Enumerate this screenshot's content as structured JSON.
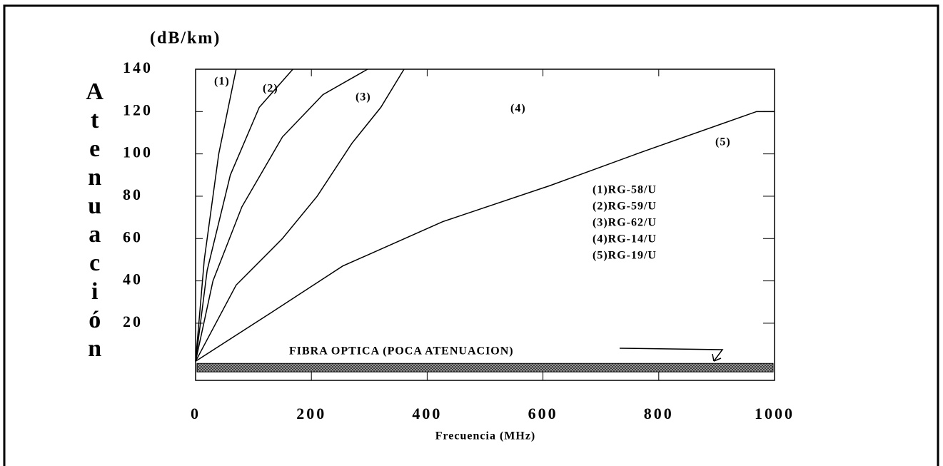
{
  "chart_data": {
    "type": "line",
    "units": "(dB/km)",
    "ylabel": "Atenuación",
    "xlabel": "Frecuencia (MHz)",
    "xlim": [
      0,
      1000
    ],
    "ylim": [
      -7,
      140
    ],
    "xticks": [
      0,
      200,
      400,
      600,
      800,
      1000
    ],
    "yticks": [
      20,
      40,
      60,
      80,
      100,
      120,
      140
    ],
    "annotation": {
      "text": "FIBRA OPTICA (POCA ATENUACION)",
      "band": [
        -3,
        1
      ]
    },
    "series": [
      {
        "name": "(1)RG-58/U",
        "label": "(1)",
        "color": "#000000",
        "x": [
          0,
          15,
          40,
          70
        ],
        "values": [
          2,
          50,
          100,
          140
        ]
      },
      {
        "name": "(2)RG-59/U",
        "label": "(2)",
        "color": "#000000",
        "x": [
          0,
          20,
          60,
          110,
          168
        ],
        "values": [
          2,
          45,
          90,
          122,
          140
        ]
      },
      {
        "name": "(3)RG-62/U",
        "label": "(3)",
        "color": "#000000",
        "x": [
          0,
          30,
          80,
          150,
          220,
          297
        ],
        "values": [
          2,
          40,
          75,
          108,
          128,
          140
        ]
      },
      {
        "name": "(4)RG-14/U",
        "label": "(4)",
        "color": "#000000",
        "x": [
          0,
          70,
          150,
          210,
          270,
          320,
          360
        ],
        "values": [
          2,
          38,
          60,
          80,
          105,
          122,
          140
        ]
      },
      {
        "name": "(5)RG-19/U",
        "label": "(5)",
        "color": "#000000",
        "x": [
          0,
          125,
          254,
          427,
          612,
          772,
          969,
          1000
        ],
        "values": [
          2,
          24,
          47,
          68,
          85,
          101,
          120,
          120
        ]
      }
    ]
  }
}
